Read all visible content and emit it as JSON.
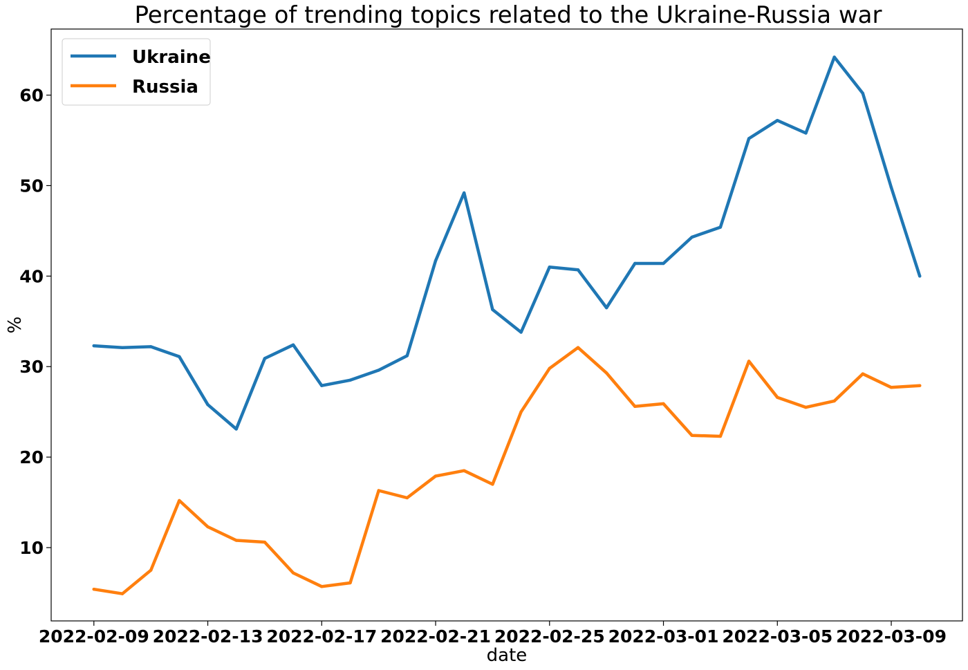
{
  "chart_data": {
    "type": "line",
    "title": "Percentage of trending topics related to the Ukraine-Russia war",
    "xlabel": "date",
    "ylabel": "%",
    "x": [
      "2022-02-09",
      "2022-02-10",
      "2022-02-11",
      "2022-02-12",
      "2022-02-13",
      "2022-02-14",
      "2022-02-15",
      "2022-02-16",
      "2022-02-17",
      "2022-02-18",
      "2022-02-19",
      "2022-02-20",
      "2022-02-21",
      "2022-02-22",
      "2022-02-23",
      "2022-02-24",
      "2022-02-25",
      "2022-02-26",
      "2022-02-27",
      "2022-02-28",
      "2022-03-01",
      "2022-03-02",
      "2022-03-03",
      "2022-03-04",
      "2022-03-05",
      "2022-03-06",
      "2022-03-07",
      "2022-03-08",
      "2022-03-09",
      "2022-03-10"
    ],
    "x_ticks": [
      "2022-02-09",
      "2022-02-13",
      "2022-02-17",
      "2022-02-21",
      "2022-02-25",
      "2022-03-01",
      "2022-03-05",
      "2022-03-09"
    ],
    "y_ticks": [
      10,
      20,
      30,
      40,
      50,
      60
    ],
    "ylim": [
      1.9,
      67.3
    ],
    "xlim": [
      "2022-02-07T12:00",
      "2022-03-11T12:00"
    ],
    "grid": false,
    "legend": "top-left",
    "series": [
      {
        "name": "Ukraine",
        "color": "#1f77b4",
        "values": [
          32.3,
          32.1,
          32.2,
          31.1,
          25.8,
          23.1,
          30.9,
          32.4,
          27.9,
          28.5,
          29.6,
          31.2,
          41.7,
          49.2,
          36.3,
          33.8,
          41.0,
          40.7,
          36.5,
          41.4,
          41.4,
          44.3,
          45.4,
          55.2,
          57.2,
          55.8,
          64.2,
          60.2,
          49.8,
          40.0
        ]
      },
      {
        "name": "Russia",
        "color": "#ff7f0e",
        "values": [
          5.4,
          4.9,
          7.5,
          15.2,
          12.3,
          10.8,
          10.6,
          7.2,
          5.7,
          6.1,
          16.3,
          15.5,
          17.9,
          18.5,
          17.0,
          25.0,
          29.8,
          32.1,
          29.3,
          25.6,
          25.9,
          22.4,
          22.3,
          30.6,
          26.6,
          25.5,
          26.2,
          29.2,
          27.7,
          27.9
        ]
      }
    ]
  }
}
